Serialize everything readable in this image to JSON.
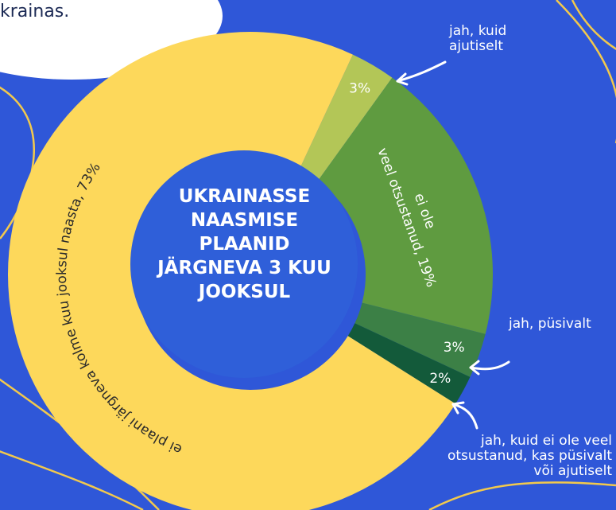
{
  "chart_data": {
    "type": "donut",
    "title": "UKRAINASSE NAASMISE PLAANID JÄRGNEVA 3 KUU JOOKSUL",
    "annotations": [
      "krainas."
    ],
    "categories": [
      "jah, kuid ajutiselt",
      null,
      "jah, püsivalt",
      "jah, kuid ei ole veel otsustanud, kas püsivalt või ajutiselt",
      null
    ],
    "values": [
      3,
      19,
      3,
      2,
      73
    ],
    "value_labels": [
      "3%",
      "ei ole veel otsustanud, 19%",
      "3%",
      "2%",
      "ei plaani järgneva kolme kuu jooksul naasta, 73%"
    ],
    "colors": [
      "#b3c657",
      "#5f9b40",
      "#3c8046",
      "#135a3a",
      "#fdd85b"
    ]
  }
}
